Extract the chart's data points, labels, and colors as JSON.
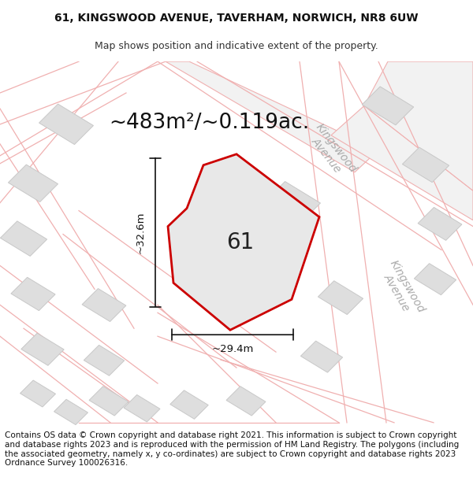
{
  "title_line1": "61, KINGSWOOD AVENUE, TAVERHAM, NORWICH, NR8 6UW",
  "title_line2": "Map shows position and indicative extent of the property.",
  "footer_text": "Contains OS data © Crown copyright and database right 2021. This information is subject to Crown copyright and database rights 2023 and is reproduced with the permission of HM Land Registry. The polygons (including the associated geometry, namely x, y co-ordinates) are subject to Crown copyright and database rights 2023 Ordnance Survey 100026316.",
  "area_label": "~483m²/~0.119ac.",
  "property_number": "61",
  "dim_height": "~32.6m",
  "dim_width": "~29.4m",
  "map_bg": "#f5f5f5",
  "road_fill": "#f0f0f0",
  "road_edge": "#f0b0b0",
  "building_fill": "#dedede",
  "building_edge": "#c8c8c8",
  "property_fill": "#e8e8e8",
  "property_edge": "#cc0000",
  "dim_color": "#111111",
  "road_label_color": "#aaaaaa",
  "title_fontsize": 10,
  "subtitle_fontsize": 9,
  "footer_fontsize": 7.5,
  "area_fontsize": 19,
  "number_fontsize": 20,
  "dim_fontsize": 9.5,
  "road_label_fontsize": 10
}
